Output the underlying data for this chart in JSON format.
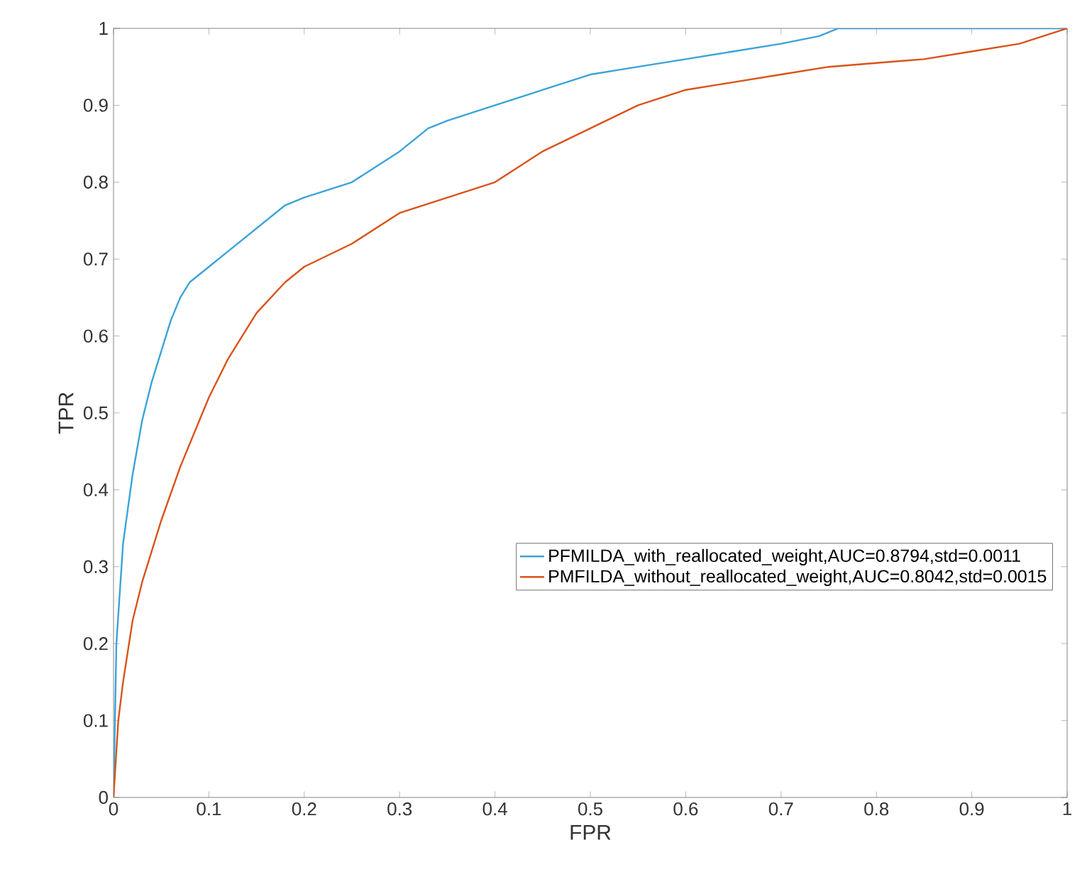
{
  "chart_data": {
    "type": "line",
    "xlabel": "FPR",
    "ylabel": "TPR",
    "xlim": [
      0,
      1
    ],
    "ylim": [
      0,
      1
    ],
    "xticks": [
      0,
      0.1,
      0.2,
      0.3,
      0.4,
      0.5,
      0.6,
      0.7,
      0.8,
      0.9,
      1
    ],
    "yticks": [
      0,
      0.1,
      0.2,
      0.3,
      0.4,
      0.5,
      0.6,
      0.7,
      0.8,
      0.9,
      1
    ],
    "legend": "right",
    "grid": false,
    "series": [
      {
        "name": "PFMILDA_with_reallocated_weight,AUC=0.8794,std=0.0011",
        "color": "#3ba3d9",
        "x": [
          0,
          0.003,
          0.01,
          0.02,
          0.03,
          0.04,
          0.05,
          0.06,
          0.07,
          0.08,
          0.1,
          0.12,
          0.15,
          0.18,
          0.2,
          0.25,
          0.3,
          0.33,
          0.35,
          0.4,
          0.45,
          0.5,
          0.55,
          0.6,
          0.65,
          0.7,
          0.74,
          0.76,
          0.8,
          0.9,
          1
        ],
        "values": [
          0,
          0.2,
          0.33,
          0.42,
          0.49,
          0.54,
          0.58,
          0.62,
          0.65,
          0.67,
          0.69,
          0.71,
          0.74,
          0.77,
          0.78,
          0.8,
          0.84,
          0.87,
          0.88,
          0.9,
          0.92,
          0.94,
          0.95,
          0.96,
          0.97,
          0.98,
          0.99,
          1,
          1,
          1,
          1
        ]
      },
      {
        "name": "PMFILDA_without_reallocated_weight,AUC=0.8042,std=0.0015",
        "color": "#d95319",
        "x": [
          0,
          0.005,
          0.01,
          0.02,
          0.03,
          0.05,
          0.07,
          0.09,
          0.1,
          0.12,
          0.15,
          0.18,
          0.2,
          0.25,
          0.3,
          0.35,
          0.4,
          0.45,
          0.5,
          0.55,
          0.6,
          0.65,
          0.7,
          0.75,
          0.8,
          0.85,
          0.9,
          0.95,
          1
        ],
        "values": [
          0,
          0.1,
          0.15,
          0.23,
          0.28,
          0.36,
          0.43,
          0.49,
          0.52,
          0.57,
          0.63,
          0.67,
          0.69,
          0.72,
          0.76,
          0.78,
          0.8,
          0.84,
          0.87,
          0.9,
          0.92,
          0.93,
          0.94,
          0.95,
          0.955,
          0.96,
          0.97,
          0.98,
          1
        ]
      }
    ]
  }
}
